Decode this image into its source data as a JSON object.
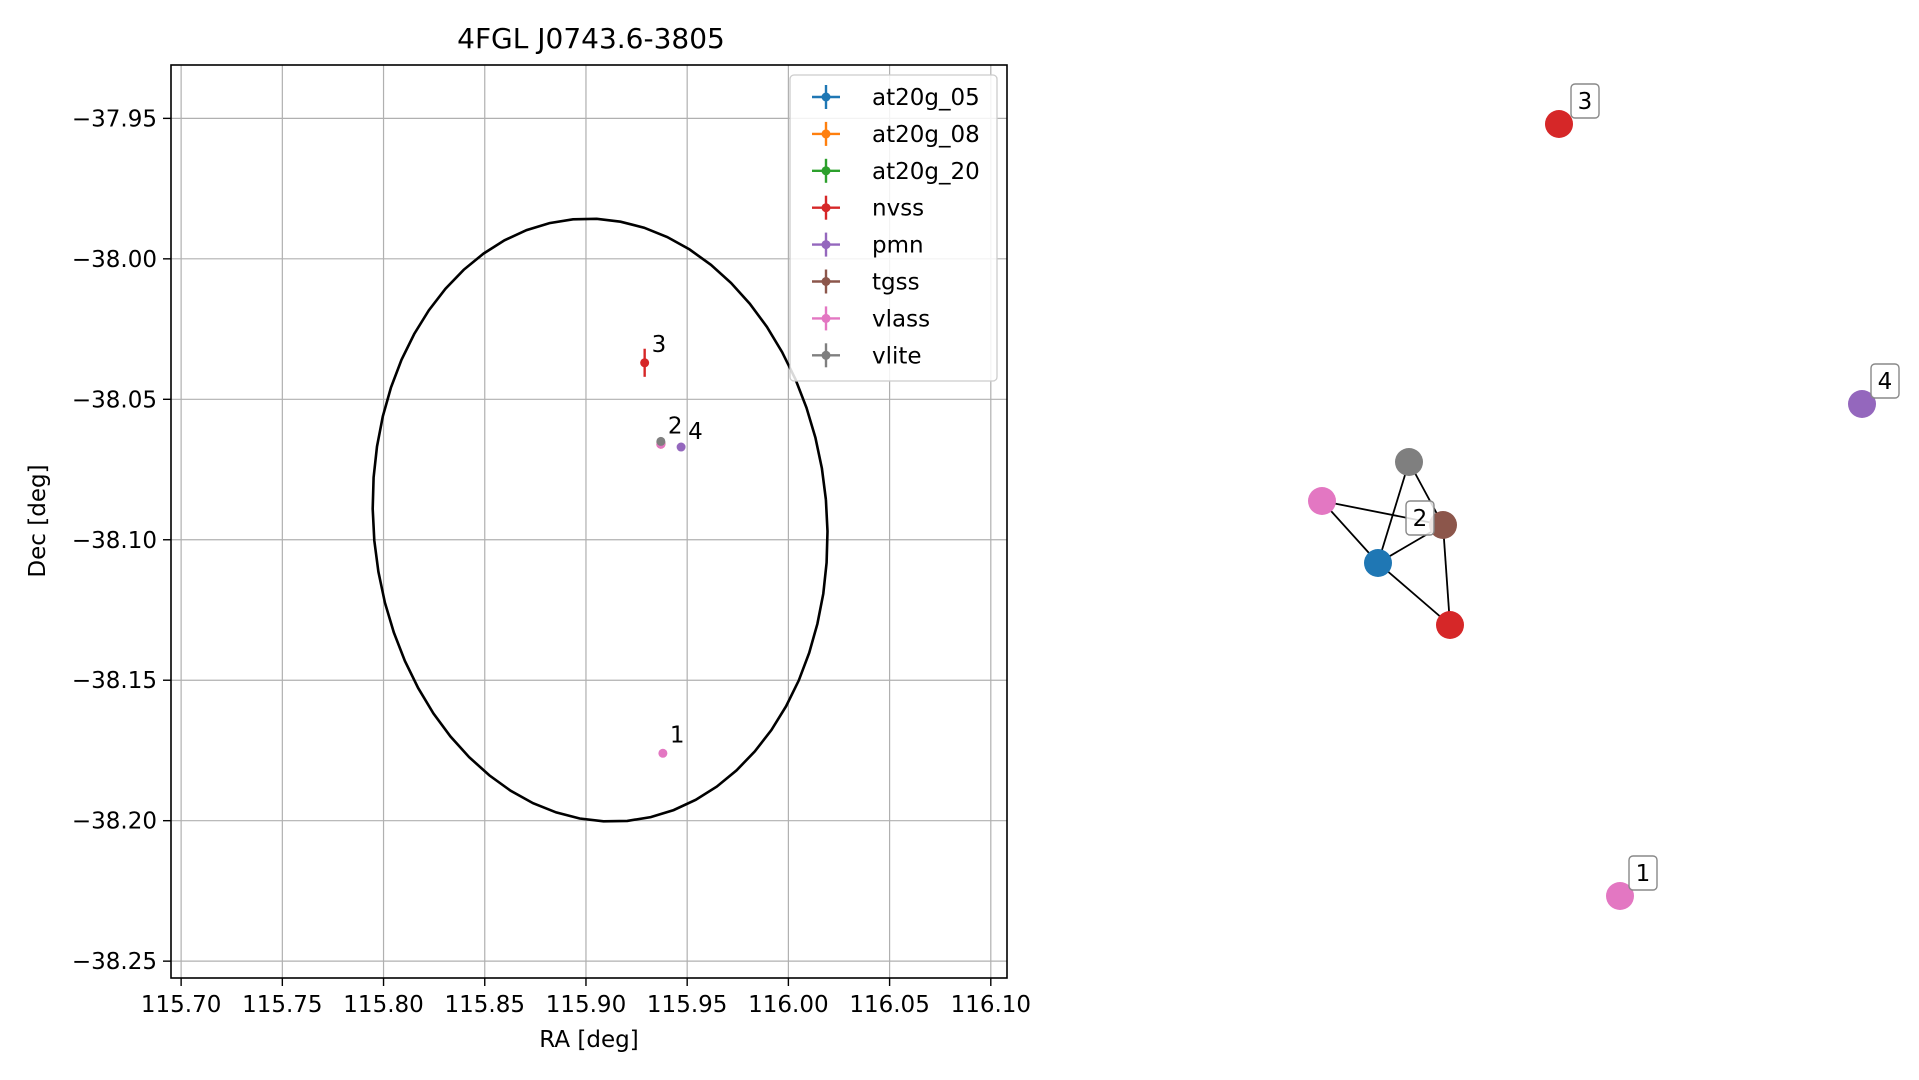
{
  "chart_data": [
    {
      "type": "scatter",
      "title": "4FGL J0743.6-3805",
      "xlabel": "RA [deg]",
      "ylabel": "Dec [deg]",
      "xlim": [
        115.695,
        116.108
      ],
      "ylim": [
        -38.256,
        -37.931
      ],
      "grid": true,
      "legend_position": "top-right",
      "x_ticks": [
        "115.70",
        "115.75",
        "115.80",
        "115.85",
        "115.90",
        "115.95",
        "116.00",
        "116.05",
        "116.10"
      ],
      "y_ticks": [
        "−37.95",
        "−38.00",
        "−38.05",
        "−38.10",
        "−38.15",
        "−38.20",
        "−38.25"
      ],
      "x_tick_values": [
        115.7,
        115.75,
        115.8,
        115.85,
        115.9,
        115.95,
        116.0,
        116.05,
        116.1
      ],
      "y_tick_values": [
        -37.95,
        -38.0,
        -38.05,
        -38.1,
        -38.15,
        -38.2,
        -38.25
      ],
      "ellipse": {
        "center_ra": 115.907,
        "center_dec": -38.093,
        "width_ra": 0.224,
        "height_dec": 0.215,
        "color": "#000000"
      },
      "series": [
        {
          "name": "at20g_05",
          "color": "#1f77b4",
          "points": []
        },
        {
          "name": "at20g_08",
          "color": "#ff7f0e",
          "points": []
        },
        {
          "name": "at20g_20",
          "color": "#2ca02c",
          "points": []
        },
        {
          "name": "nvss",
          "color": "#d62728",
          "points": [
            {
              "x": 115.929,
              "y": -38.037,
              "yerr": 0.005
            },
            {
              "x": 115.937,
              "y": -38.066,
              "yerr": 0.001
            }
          ]
        },
        {
          "name": "pmn",
          "color": "#9467bd",
          "points": [
            {
              "x": 115.947,
              "y": -38.067,
              "yerr": 0.0
            }
          ]
        },
        {
          "name": "tgss",
          "color": "#8c564b",
          "points": [
            {
              "x": 115.937,
              "y": -38.0655,
              "yerr": 0.0
            }
          ]
        },
        {
          "name": "vlass",
          "color": "#e377c2",
          "points": [
            {
              "x": 115.937,
              "y": -38.066,
              "yerr": 0.0
            },
            {
              "x": 115.938,
              "y": -38.176,
              "yerr": 0.0
            }
          ]
        },
        {
          "name": "vlite",
          "color": "#7f7f7f",
          "points": [
            {
              "x": 115.937,
              "y": -38.065,
              "yerr": 0.0
            }
          ]
        }
      ],
      "annotations": [
        {
          "text": "3",
          "x": 115.929,
          "y": -38.037
        },
        {
          "text": "2",
          "x": 115.937,
          "y": -38.065
        },
        {
          "text": "4",
          "x": 115.947,
          "y": -38.067
        },
        {
          "text": "1",
          "x": 115.938,
          "y": -38.176
        }
      ]
    },
    {
      "type": "graph",
      "nodes": [
        {
          "id": "n_blue",
          "color": "#1f77b4",
          "label": ""
        },
        {
          "id": "n_pink",
          "color": "#e377c2",
          "label": ""
        },
        {
          "id": "n_gray",
          "color": "#7f7f7f",
          "label": ""
        },
        {
          "id": "n_brown",
          "color": "#8c564b",
          "label": "2"
        },
        {
          "id": "n_red",
          "color": "#d62728",
          "label": ""
        },
        {
          "id": "n_red3",
          "color": "#d62728",
          "label": "3"
        },
        {
          "id": "n_purple4",
          "color": "#9467bd",
          "label": "4"
        },
        {
          "id": "n_pink1",
          "color": "#e377c2",
          "label": "1"
        }
      ],
      "edges": [
        [
          "n_pink",
          "n_blue"
        ],
        [
          "n_pink",
          "n_brown"
        ],
        [
          "n_blue",
          "n_gray"
        ],
        [
          "n_blue",
          "n_brown"
        ],
        [
          "n_blue",
          "n_red"
        ],
        [
          "n_gray",
          "n_brown"
        ],
        [
          "n_brown",
          "n_red"
        ]
      ]
    }
  ]
}
